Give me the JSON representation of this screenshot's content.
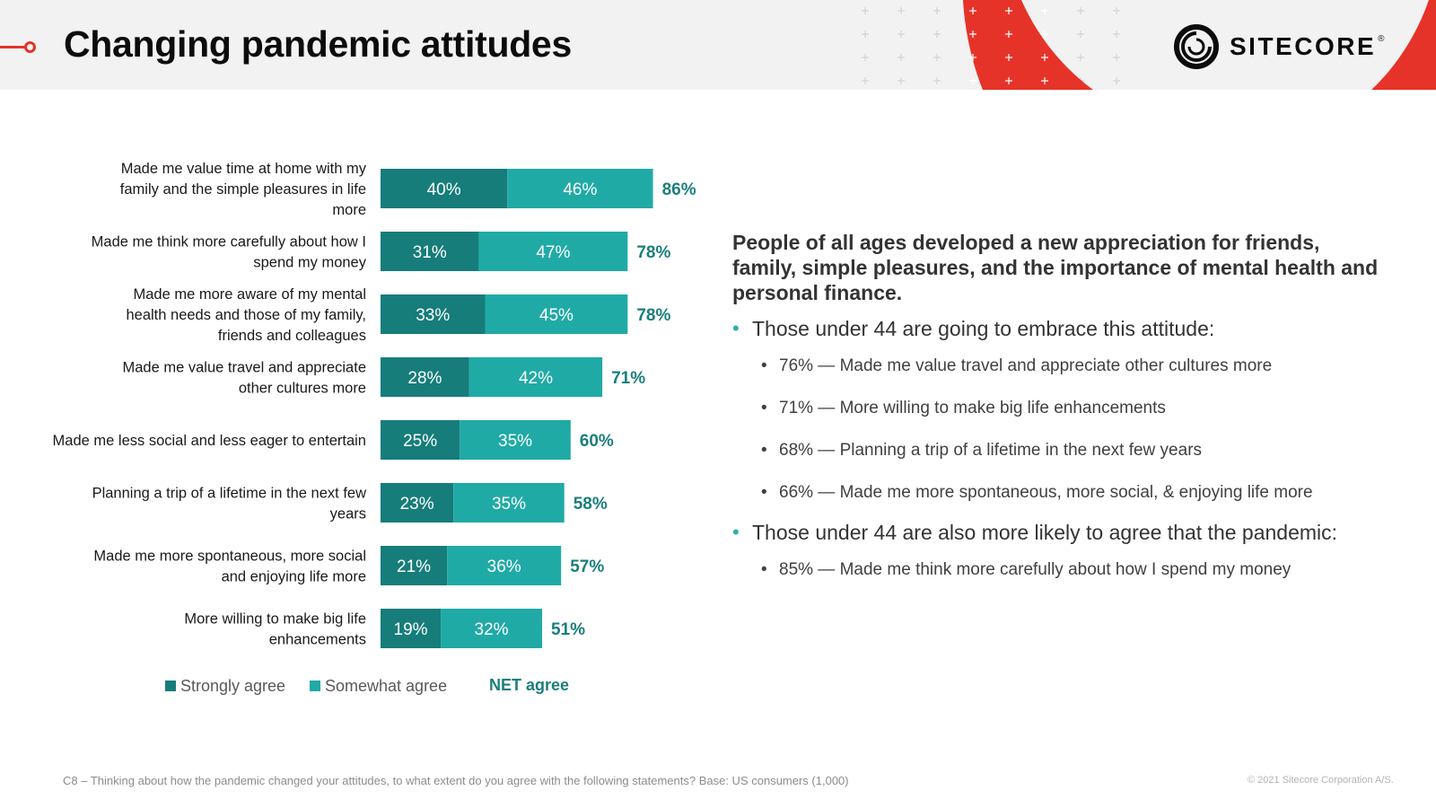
{
  "header": {
    "title": "Changing pandemic attitudes"
  },
  "brand": {
    "name": "SITECORE",
    "mark": "®",
    "accent": "#e63329"
  },
  "colors": {
    "strongly": "#167d7a",
    "somewhat": "#20aaa6",
    "net": "#1a7f7c"
  },
  "chart_data": {
    "type": "bar",
    "stacked": true,
    "orientation": "horizontal",
    "xlim": [
      0,
      100
    ],
    "categories": [
      [
        "Made me value time at home with my",
        "family and the simple pleasures in life",
        "more"
      ],
      [
        "Made me think more carefully about how I",
        "spend my money"
      ],
      [
        "Made me more aware of my mental",
        "health needs and those of my family,",
        "friends and colleagues"
      ],
      [
        "Made me value travel and appreciate",
        "other cultures more"
      ],
      [
        "Made me less social and less eager to entertain"
      ],
      [
        "Planning a trip of a lifetime in the next few",
        "years"
      ],
      [
        "Made me more spontaneous, more social",
        "and enjoying life more"
      ],
      [
        "More willing to make big life",
        "enhancements"
      ]
    ],
    "series": [
      {
        "name": "Strongly agree",
        "values": [
          40,
          31,
          33,
          28,
          25,
          23,
          21,
          19
        ]
      },
      {
        "name": "Somewhat agree",
        "values": [
          46,
          47,
          45,
          42,
          35,
          35,
          36,
          32
        ]
      }
    ],
    "net": {
      "name": "NET agree",
      "values": [
        86,
        78,
        78,
        71,
        60,
        58,
        57,
        51
      ]
    },
    "value_suffix": "%"
  },
  "legend": {
    "strongly": "Strongly agree",
    "somewhat": "Somewhat agree",
    "net": "NET agree"
  },
  "panel": {
    "heading": "People of all ages developed a new appreciation for friends, family, simple pleasures, and the importance of mental health and personal finance.",
    "bullets": [
      {
        "text": "Those under 44 are going to embrace this attitude:",
        "subs": [
          "76% — Made me value travel and appreciate other cultures more",
          "71% — More willing to make big life enhancements",
          "68% — Planning a trip of a lifetime in the next few years",
          "66% — Made me more spontaneous, more social, & enjoying life more"
        ]
      },
      {
        "text": "Those under 44 are also more likely to agree that the pandemic:",
        "subs": [
          "85% — Made me think more carefully about how I spend my money"
        ]
      }
    ]
  },
  "footnote": "C8 – Thinking about how the pandemic changed your attitudes, to what extent do you agree with the following statements? Base: US consumers (1,000)",
  "copyright": "© 2021 Sitecore Corporation A/S."
}
